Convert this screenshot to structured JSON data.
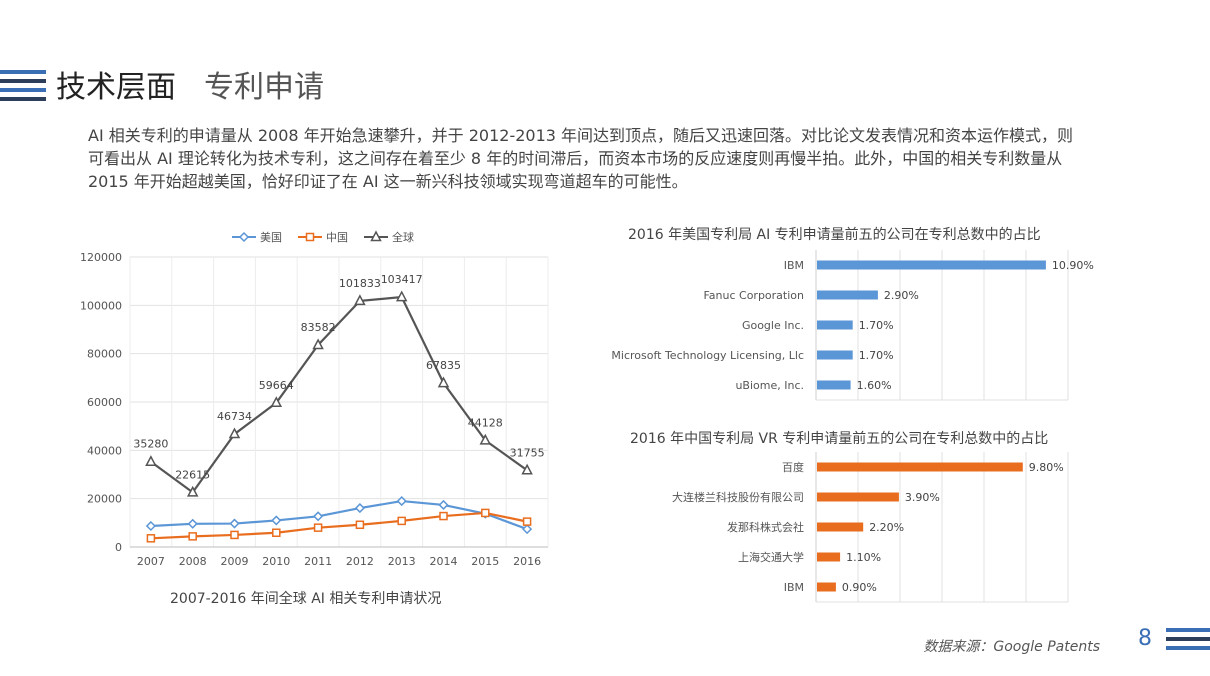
{
  "slide": {
    "title": "技术层面",
    "subtitle": "专利申请",
    "paragraph": "AI 相关专利的申请量从 2008 年开始急速攀升，并于 2012-2013 年间达到顶点，随后又迅速回落。对比论文发表情况和资本运作模式，则可看出从 AI 理论转化为技术专利，这之间存在着至少 8 年的时间滞后，而资本市场的反应速度则再慢半拍。此外，中国的相关专利数量从 2015 年开始超越美国，恰好印证了在 AI 这一新兴科技领域实现弯道超车的可能性。",
    "source": "数据来源：Google Patents",
    "page_number": "8",
    "colors": {
      "blue": "#5b96d6",
      "orange": "#e96d1f",
      "gray": "#555555",
      "deco_blue": "#3a6fb5",
      "deco_dark": "#2c3e5a"
    }
  },
  "chart_data": [
    {
      "type": "line",
      "caption": "2007-2016 年间全球 AI 相关专利申请状况",
      "x": [
        "2007",
        "2008",
        "2009",
        "2010",
        "2011",
        "2012",
        "2013",
        "2014",
        "2015",
        "2016"
      ],
      "ylim": [
        0,
        120000
      ],
      "yticks": [
        "0",
        "20000",
        "40000",
        "60000",
        "80000",
        "100000",
        "120000"
      ],
      "legend_position": "top",
      "grid": true,
      "series": [
        {
          "name": "美国",
          "color": "#5b96d6",
          "marker": "diamond",
          "values": [
            8700,
            9600,
            9700,
            11000,
            12700,
            16100,
            19000,
            17400,
            13800,
            7400
          ]
        },
        {
          "name": "中国",
          "color": "#e96d1f",
          "marker": "square",
          "values": [
            3600,
            4400,
            5000,
            5900,
            8000,
            9200,
            10800,
            12800,
            14100,
            10500
          ]
        },
        {
          "name": "全球",
          "color": "#555555",
          "marker": "triangle",
          "values": [
            35280,
            22615,
            46734,
            59664,
            83582,
            101833,
            103417,
            67835,
            44128,
            31755
          ],
          "labels": [
            "35280",
            "22615",
            "46734",
            "59664",
            "83582",
            "101833",
            "103417",
            "67835",
            "44128",
            "31755"
          ]
        }
      ]
    },
    {
      "type": "bar",
      "orientation": "horizontal",
      "title": "2016 年美国专利局 AI 专利申请量前五的公司在专利总数中的占比",
      "color": "#5b96d6",
      "max": 12,
      "categories": [
        "IBM",
        "Fanuc Corporation",
        "Google Inc.",
        "Microsoft Technology Licensing, Llc",
        "uBiome, Inc."
      ],
      "values": [
        10.9,
        2.9,
        1.7,
        1.7,
        1.6
      ],
      "labels": [
        "10.90%",
        "2.90%",
        "1.70%",
        "1.70%",
        "1.60%"
      ]
    },
    {
      "type": "bar",
      "orientation": "horizontal",
      "title": "2016 年中国专利局 VR 专利申请量前五的公司在专利总数中的占比",
      "color": "#e96d1f",
      "max": 12,
      "categories": [
        "百度",
        "大连楼兰科技股份有限公司",
        "发那科株式会社",
        "上海交通大学",
        "IBM"
      ],
      "values": [
        9.8,
        3.9,
        2.2,
        1.1,
        0.9
      ],
      "labels": [
        "9.80%",
        "3.90%",
        "2.20%",
        "1.10%",
        "0.90%"
      ]
    }
  ]
}
